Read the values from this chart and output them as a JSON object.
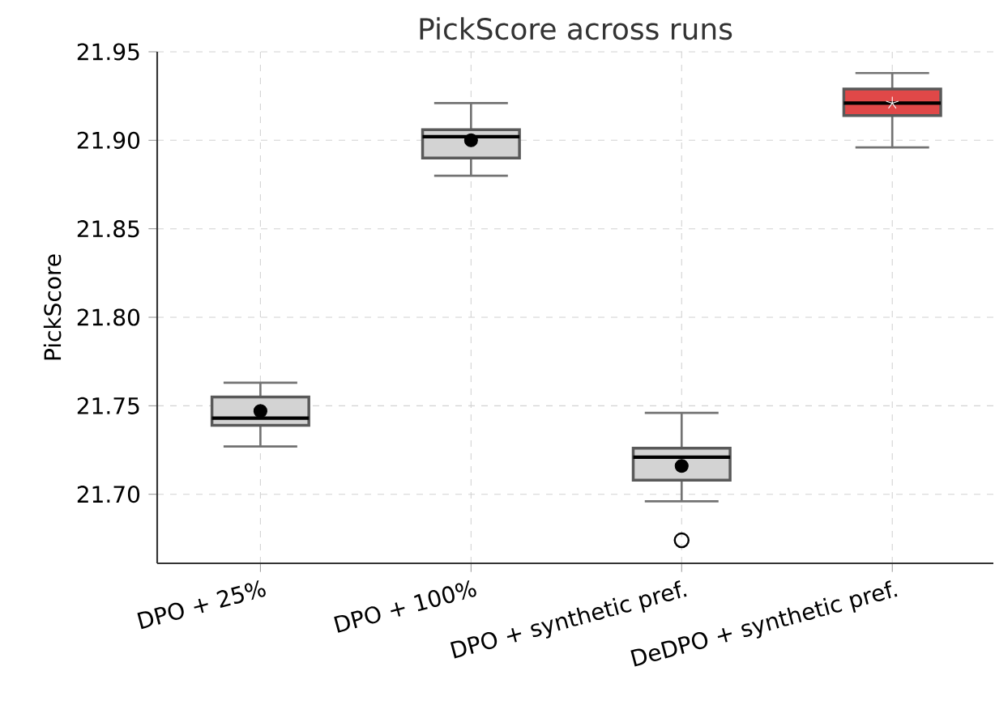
{
  "chart_data": {
    "type": "box",
    "title": "PickScore across runs",
    "ylabel": "PickScore",
    "categories": [
      "DPO + 25%",
      "DPO + 100%",
      "DPO + synthetic pref.",
      "DeDPO + synthetic pref."
    ],
    "series": [
      {
        "color": "#d3d3d3",
        "marker": "circle",
        "boxes": [
          {
            "low": 21.727,
            "q1": 21.739,
            "median": 21.743,
            "q3": 21.755,
            "high": 21.763,
            "mean": 21.747
          },
          {
            "low": 21.88,
            "q1": 21.89,
            "median": 21.902,
            "q3": 21.906,
            "high": 21.921,
            "mean": 21.9
          },
          {
            "low": 21.696,
            "q1": 21.708,
            "median": 21.721,
            "q3": 21.726,
            "high": 21.746,
            "mean": 21.716,
            "outliers": [
              21.674
            ]
          },
          null
        ]
      },
      {
        "color": "#e04848",
        "marker": "star",
        "boxes": [
          null,
          null,
          null,
          {
            "low": 21.896,
            "q1": 21.914,
            "median": 21.921,
            "q3": 21.929,
            "high": 21.938,
            "mean": 21.921
          }
        ]
      }
    ],
    "ylim": [
      21.661,
      21.95
    ],
    "yticks": [
      {
        "value": 21.7,
        "label": "21.70"
      },
      {
        "value": 21.75,
        "label": "21.75"
      },
      {
        "value": 21.8,
        "label": "21.80"
      },
      {
        "value": 21.85,
        "label": "21.85"
      },
      {
        "value": 21.9,
        "label": "21.90"
      },
      {
        "value": 21.95,
        "label": "21.95"
      }
    ],
    "grid": true
  }
}
